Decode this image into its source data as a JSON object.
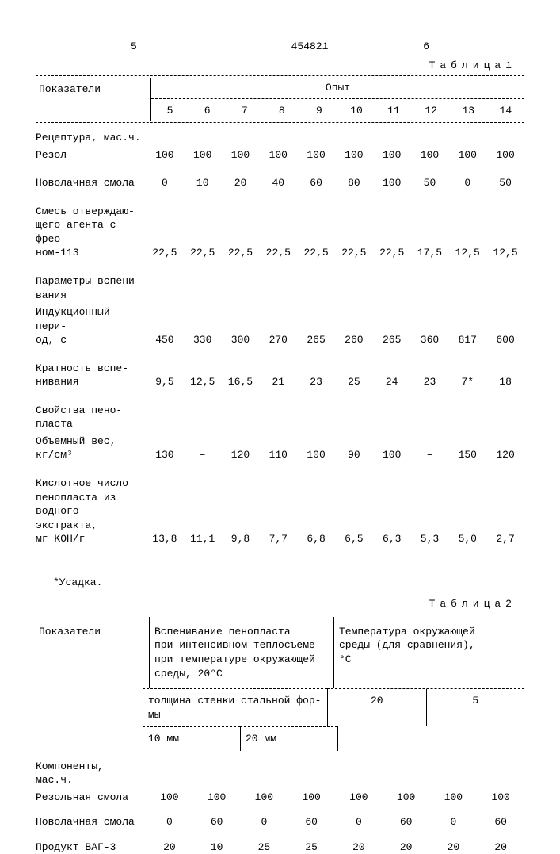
{
  "page": {
    "left_num": "5",
    "doc_num": "454821",
    "right_num": "6"
  },
  "table1": {
    "label": "Таблица1",
    "col_label": "Показатели",
    "group_header": "Опыт",
    "col_nums": [
      "5",
      "6",
      "7",
      "8",
      "9",
      "10",
      "11",
      "12",
      "13",
      "14"
    ],
    "sections": {
      "s1_label": "Рецептура, мас.ч.",
      "s2_label": "Параметры вспени-\nвания",
      "s3_label": "Свойства пено-\nпласта"
    },
    "rows": [
      {
        "label": "Резол",
        "cells": [
          "100",
          "100",
          "100",
          "100",
          "100",
          "100",
          "100",
          "100",
          "100",
          "100"
        ]
      },
      {
        "label": "Новолачная смола",
        "cells": [
          "0",
          "10",
          "20",
          "40",
          "60",
          "80",
          "100",
          "50",
          "0",
          "50"
        ]
      },
      {
        "label": "Смесь отверждаю-\nщего агента с фрео-\nном-113",
        "cells": [
          "22,5",
          "22,5",
          "22,5",
          "22,5",
          "22,5",
          "22,5",
          "22,5",
          "17,5",
          "12,5",
          "12,5"
        ]
      },
      {
        "label": "Индукционный пери-\nод, с",
        "cells": [
          "450",
          "330",
          "300",
          "270",
          "265",
          "260",
          "265",
          "360",
          "817",
          "600"
        ]
      },
      {
        "label": "Кратность вспе-\nнивания",
        "cells": [
          "9,5",
          "12,5",
          "16,5",
          "21",
          "23",
          "25",
          "24",
          "23",
          "7*",
          "18"
        ]
      },
      {
        "label": "Объемный вес,\nкг/см³",
        "cells": [
          "130",
          "–",
          "120",
          "110",
          "100",
          "90",
          "100",
          "–",
          "150",
          "120"
        ]
      },
      {
        "label": "Кислотное число\nпенопласта из\nводного экстракта,\nмг KOH/г",
        "cells": [
          "13,8",
          "11,1",
          "9,8",
          "7,7",
          "6,8",
          "6,5",
          "6,3",
          "5,3",
          "5,0",
          "2,7"
        ]
      }
    ],
    "footnote": "*Усадка."
  },
  "table2": {
    "label": "Таблица2",
    "col_label": "Показатели",
    "h2": "Вспенивание пенопласта\nпри интенсивном теплосъеме\nпри температуре окружающей\nсреды,   20°С",
    "h3": "Температура окружающей\nсреды (для сравнения),\n       °С",
    "sub_h2": "толщина стенки стальной фор-\nмы",
    "sub_c3a": "20",
    "sub_c3b": "5",
    "sub2a": "10 мм",
    "sub2b": "20 мм",
    "section_label": "Компоненты,\nмас.ч.",
    "rows": [
      {
        "label": "Резольная смола",
        "cells": [
          "100",
          "100",
          "100",
          "100",
          "100",
          "100",
          "100",
          "100"
        ]
      },
      {
        "label": "Новолачная смола",
        "cells": [
          "0",
          "60",
          "0",
          "60",
          "0",
          "60",
          "0",
          "60"
        ]
      },
      {
        "label": "Продукт ВАГ-3",
        "cells": [
          "20",
          "10",
          "25",
          "25",
          "20",
          "20",
          "20",
          "20"
        ]
      }
    ]
  }
}
